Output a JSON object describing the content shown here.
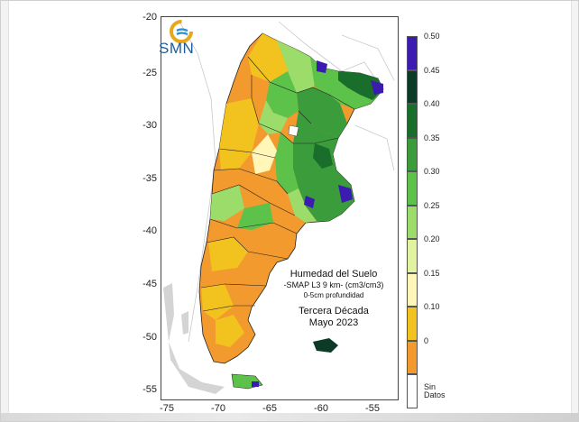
{
  "logo": {
    "text": "SMN"
  },
  "annotation": {
    "line1": "Humedad del Suelo",
    "line2": "-SMAP L3 9 km- (cm3/cm3)",
    "line3": "0-5cm profundidad",
    "line4": "Tercera Década",
    "line5": "Mayo 2023"
  },
  "axes": {
    "x_ticks": [
      "-75",
      "-70",
      "-65",
      "-60",
      "-55"
    ],
    "y_ticks": [
      "-20",
      "-25",
      "-30",
      "-35",
      "-40",
      "-45",
      "-50",
      "-55"
    ]
  },
  "legend": {
    "items": [
      {
        "label": "0.50",
        "color": "#3b1bb0"
      },
      {
        "label": "0.45",
        "color": "#0b3a26"
      },
      {
        "label": "0.40",
        "color": "#1a6e2c"
      },
      {
        "label": "0.35",
        "color": "#3a9c3a"
      },
      {
        "label": "0.30",
        "color": "#5cc24a"
      },
      {
        "label": "0.25",
        "color": "#9bdc6a"
      },
      {
        "label": "0.20",
        "color": "#e2f3a0"
      },
      {
        "label": "0.15",
        "color": "#fff6b8"
      },
      {
        "label": "0.10",
        "color": "#f2c21e"
      },
      {
        "label": "0",
        "color": "#f29a2e"
      },
      {
        "label": "Sin\nDatos",
        "color": "#ffffff"
      }
    ]
  }
}
